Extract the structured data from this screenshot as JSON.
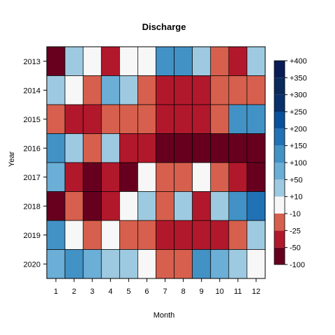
{
  "chart_data": {
    "type": "heatmap",
    "title": "Discharge",
    "xlabel": "Month",
    "ylabel": "Year",
    "x_categories": [
      "1",
      "2",
      "3",
      "4",
      "5",
      "6",
      "7",
      "8",
      "9",
      "10",
      "11",
      "12"
    ],
    "y_categories": [
      "2013",
      "2014",
      "2015",
      "2016",
      "2017",
      "2018",
      "2019",
      "2020"
    ],
    "legend": {
      "position": "right",
      "boundaries": [
        "-100",
        "-50",
        "-25",
        "-10",
        "+10",
        "+50",
        "+100",
        "+150",
        "+200",
        "+250",
        "+300",
        "+350",
        "+400"
      ],
      "colors": [
        "#67001f",
        "#b2182b",
        "#d6604d",
        "#f7f7f7",
        "#9ecae1",
        "#6baed6",
        "#4292c6",
        "#2171b5",
        "#08519c",
        "#08306b",
        "#0a2a5c",
        "#081d58"
      ]
    },
    "values_bin_index": [
      [
        0,
        4,
        3,
        1,
        3,
        3,
        6,
        6,
        4,
        2,
        1,
        4
      ],
      [
        4,
        3,
        2,
        5,
        4,
        2,
        1,
        1,
        1,
        2,
        2,
        2
      ],
      [
        2,
        1,
        1,
        2,
        2,
        2,
        1,
        1,
        1,
        2,
        6,
        6
      ],
      [
        6,
        4,
        2,
        4,
        1,
        1,
        0,
        0,
        0,
        0,
        0,
        0
      ],
      [
        5,
        1,
        0,
        1,
        0,
        3,
        2,
        2,
        3,
        2,
        1,
        0
      ],
      [
        0,
        2,
        0,
        1,
        3,
        4,
        2,
        4,
        1,
        4,
        6,
        7
      ],
      [
        6,
        3,
        2,
        3,
        2,
        2,
        1,
        1,
        1,
        1,
        2,
        4
      ],
      [
        5,
        6,
        5,
        4,
        4,
        3,
        2,
        2,
        6,
        5,
        4,
        3
      ]
    ]
  }
}
